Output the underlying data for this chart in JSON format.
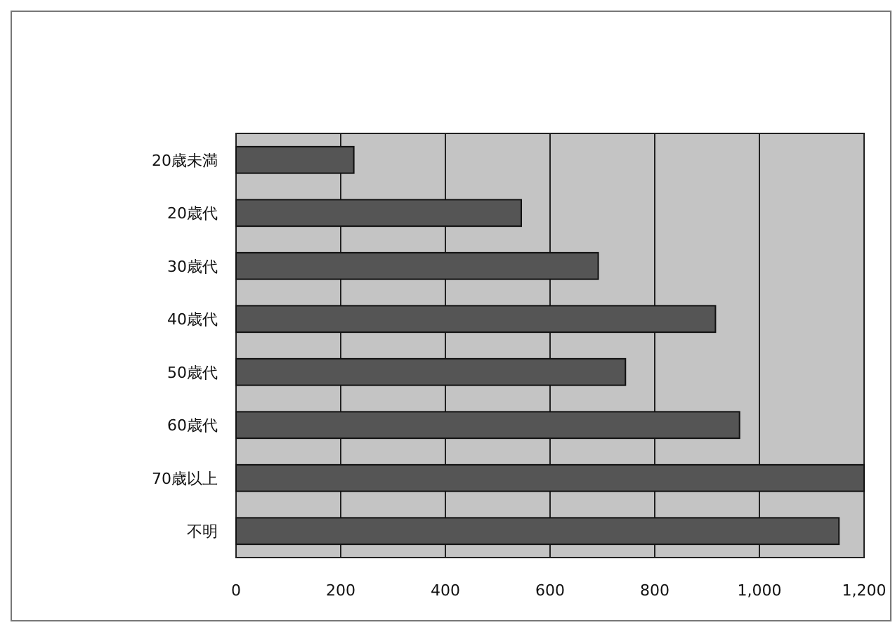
{
  "chart_data": {
    "type": "bar",
    "orientation": "horizontal",
    "categories": [
      "20歳未満",
      "20歳代",
      "30歳代",
      "40歳代",
      "50歳代",
      "60歳代",
      "70歳以上",
      "不明"
    ],
    "values": [
      225,
      545,
      692,
      916,
      744,
      962,
      1200,
      1152
    ],
    "color": "#555555",
    "xlim": [
      0,
      1200
    ],
    "xticks": [
      0,
      200,
      400,
      600,
      800,
      {
        "value": 1000,
        "label": "1,000"
      },
      {
        "value": 1200,
        "label": "1,200"
      }
    ],
    "grid": "x"
  }
}
